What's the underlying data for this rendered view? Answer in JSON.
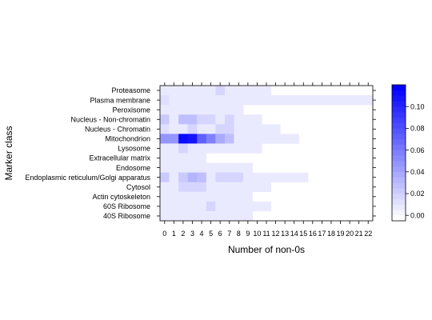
{
  "chart_data": {
    "type": "heatmap",
    "xlabel": "Number of non-0s",
    "ylabel": "Marker class",
    "x_categories": [
      "0",
      "1",
      "2",
      "3",
      "4",
      "5",
      "6",
      "7",
      "8",
      "9",
      "10",
      "11",
      "12",
      "13",
      "14",
      "15",
      "16",
      "17",
      "18",
      "19",
      "20",
      "21",
      "22"
    ],
    "y_categories": [
      "Proteasome",
      "Plasma membrane",
      "Peroxisome",
      "Nucleus - Non-chromatin",
      "Nucleus - Chromatin",
      "Mitochondrion",
      "Lysosome",
      "Extracellular matrix",
      "Endosome",
      "Endoplasmic reticulum/Golgi apparatus",
      "Cytosol",
      "Actin cytoskeleton",
      "60S Ribosome",
      "40S Ribosome"
    ],
    "values": [
      [
        0.005,
        0.005,
        0.005,
        0.005,
        0.005,
        0.005,
        0.015,
        0.005,
        0.005,
        0.005,
        0.005,
        0.005,
        null,
        null,
        null,
        null,
        null,
        null,
        null,
        null,
        null,
        null,
        null
      ],
      [
        0.01,
        0.005,
        0.005,
        0.005,
        0.005,
        0.005,
        0.005,
        0.005,
        0.005,
        0.005,
        0.005,
        0.005,
        0.005,
        0.005,
        0.005,
        0.005,
        0.005,
        0.005,
        0.005,
        0.005,
        0.005,
        0.005,
        0.005
      ],
      [
        0.005,
        0.005,
        0.005,
        0.005,
        0.005,
        0.005,
        0.005,
        0.005,
        0.005,
        null,
        null,
        null,
        null,
        null,
        null,
        null,
        null,
        null,
        null,
        null,
        null,
        null,
        null
      ],
      [
        0.02,
        0.005,
        0.025,
        0.025,
        0.015,
        0.015,
        0.005,
        0.015,
        0.005,
        0.005,
        0.005,
        null,
        null,
        null,
        null,
        null,
        null,
        null,
        null,
        null,
        null,
        null,
        null
      ],
      [
        0.01,
        0.005,
        0.005,
        0.015,
        0.005,
        0.005,
        0.015,
        0.015,
        0.005,
        0.005,
        0.005,
        0.005,
        0.005,
        null,
        null,
        null,
        null,
        null,
        null,
        null,
        null,
        null,
        null
      ],
      [
        0.045,
        0.045,
        0.115,
        0.11,
        0.075,
        0.06,
        0.035,
        0.025,
        0.005,
        0.005,
        0.005,
        0.005,
        0.005,
        0.005,
        0.005,
        null,
        null,
        null,
        null,
        null,
        null,
        null,
        null
      ],
      [
        0.005,
        0.005,
        0.015,
        0.005,
        0.005,
        0.005,
        0.005,
        0.005,
        0.005,
        0.005,
        0.005,
        null,
        null,
        null,
        null,
        null,
        null,
        null,
        null,
        null,
        null,
        null,
        null
      ],
      [
        0.005,
        0.005,
        0.005,
        0.005,
        0.005,
        null,
        null,
        null,
        null,
        null,
        null,
        null,
        null,
        null,
        null,
        null,
        null,
        null,
        null,
        null,
        null,
        null,
        null
      ],
      [
        0.005,
        0.005,
        0.005,
        0.005,
        0.005,
        0.005,
        0.005,
        0.005,
        0.005,
        0.005,
        null,
        null,
        null,
        null,
        null,
        null,
        null,
        null,
        null,
        null,
        null,
        null,
        null
      ],
      [
        0.02,
        0.005,
        0.02,
        0.03,
        0.025,
        0.005,
        0.015,
        0.015,
        0.015,
        0.005,
        0.005,
        0.005,
        0.005,
        0.005,
        0.005,
        0.005,
        null,
        null,
        null,
        null,
        null,
        null,
        null
      ],
      [
        0.005,
        0.005,
        0.015,
        0.015,
        0.015,
        0.005,
        0.005,
        0.005,
        0.005,
        0.005,
        0.005,
        0.005,
        null,
        null,
        null,
        null,
        null,
        null,
        null,
        null,
        null,
        null,
        null
      ],
      [
        0.005,
        0.005,
        0.005,
        0.005,
        0.005,
        0.005,
        0.005,
        0.005,
        0.005,
        0.005,
        null,
        null,
        null,
        null,
        null,
        null,
        null,
        null,
        null,
        null,
        null,
        null,
        null
      ],
      [
        0.005,
        0.005,
        0.005,
        0.005,
        0.005,
        0.015,
        0.005,
        0.005,
        0.005,
        0.005,
        0.005,
        0.005,
        null,
        null,
        null,
        null,
        null,
        null,
        null,
        null,
        null,
        null,
        null
      ],
      [
        0.005,
        0.005,
        0.005,
        0.005,
        0.005,
        0.005,
        0.005,
        0.005,
        0.005,
        0.005,
        null,
        null,
        null,
        null,
        null,
        null,
        null,
        null,
        null,
        null,
        null,
        null,
        null
      ]
    ],
    "colorbar": {
      "ticks": [
        "0.00",
        "0.02",
        "0.04",
        "0.06",
        "0.08",
        "0.10"
      ],
      "tick_values": [
        0,
        0.02,
        0.04,
        0.06,
        0.08,
        0.1
      ],
      "range": [
        -0.005,
        0.12
      ],
      "low_color": "#ffffff",
      "high_color": "#0000ff"
    },
    "grid": false,
    "legend": "right"
  }
}
